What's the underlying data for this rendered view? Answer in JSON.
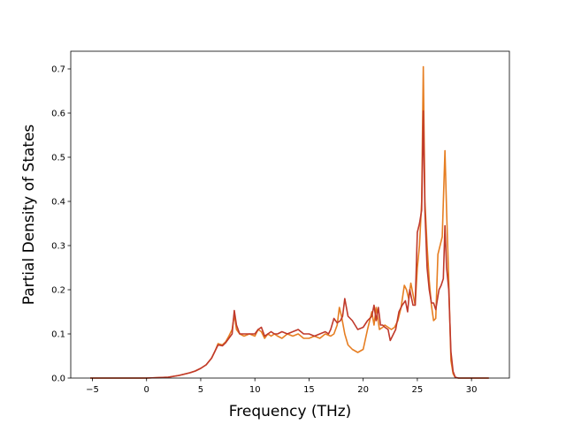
{
  "chart_data": {
    "type": "line",
    "title": "",
    "xlabel": "Frequency (THz)",
    "ylabel": "Partial Density of States",
    "xlim": [
      -7,
      33.5
    ],
    "ylim": [
      0,
      0.74
    ],
    "xticks": [
      -5,
      0,
      5,
      10,
      15,
      20,
      25,
      30
    ],
    "yticks": [
      0.0,
      0.1,
      0.2,
      0.3,
      0.4,
      0.5,
      0.6,
      0.7
    ],
    "xtick_labels": [
      "−5",
      "0",
      "5",
      "10",
      "15",
      "20",
      "25",
      "30"
    ],
    "ytick_labels": [
      "0.0",
      "0.1",
      "0.2",
      "0.3",
      "0.4",
      "0.5",
      "0.6",
      "0.7"
    ],
    "grid": false,
    "legend": "none",
    "series": [
      {
        "color": "#e67e22",
        "x": [
          -5.2,
          0,
          2,
          3,
          4,
          4.5,
          5,
          5.5,
          6,
          6.3,
          6.6,
          7,
          7.3,
          7.6,
          7.9,
          8.1,
          8.3,
          8.6,
          9,
          9.5,
          10,
          10.3,
          10.6,
          10.9,
          11.2,
          11.5,
          11.8,
          12.1,
          12.5,
          13,
          13.5,
          14,
          14.5,
          15,
          15.5,
          16,
          16.5,
          17,
          17.3,
          17.6,
          17.8,
          18,
          18.3,
          18.6,
          19,
          19.5,
          20,
          20.4,
          20.8,
          21,
          21.2,
          21.5,
          21.8,
          22,
          22.3,
          22.6,
          22.9,
          23.2,
          23.5,
          23.8,
          24,
          24.2,
          24.4,
          24.6,
          24.8,
          25,
          25.2,
          25.4,
          25.55,
          25.7,
          25.9,
          26.1,
          26.3,
          26.5,
          26.7,
          26.9,
          27.1,
          27.3,
          27.55,
          27.7,
          27.9,
          28.1,
          28.3,
          28.5,
          28.8,
          29.5,
          31.6
        ],
        "y": [
          0,
          0,
          0.002,
          0.006,
          0.012,
          0.016,
          0.022,
          0.03,
          0.045,
          0.06,
          0.078,
          0.075,
          0.082,
          0.095,
          0.11,
          0.145,
          0.11,
          0.1,
          0.095,
          0.1,
          0.095,
          0.11,
          0.105,
          0.09,
          0.1,
          0.095,
          0.1,
          0.095,
          0.09,
          0.1,
          0.095,
          0.1,
          0.09,
          0.09,
          0.095,
          0.09,
          0.1,
          0.095,
          0.1,
          0.12,
          0.16,
          0.14,
          0.1,
          0.075,
          0.065,
          0.058,
          0.065,
          0.11,
          0.15,
          0.12,
          0.16,
          0.11,
          0.115,
          0.12,
          0.115,
          0.11,
          0.115,
          0.13,
          0.16,
          0.21,
          0.2,
          0.18,
          0.215,
          0.19,
          0.165,
          0.25,
          0.3,
          0.4,
          0.705,
          0.4,
          0.3,
          0.22,
          0.165,
          0.13,
          0.135,
          0.28,
          0.3,
          0.32,
          0.515,
          0.38,
          0.22,
          0.04,
          0.01,
          0.001,
          0,
          0,
          0
        ]
      },
      {
        "color": "#c0392b",
        "x": [
          -5.2,
          0,
          2,
          3,
          4,
          4.5,
          5,
          5.5,
          6,
          6.3,
          6.6,
          7,
          7.3,
          7.6,
          7.9,
          8.1,
          8.3,
          8.6,
          9,
          9.5,
          10,
          10.3,
          10.6,
          10.9,
          11.2,
          11.5,
          11.8,
          12.1,
          12.5,
          13,
          13.5,
          14,
          14.5,
          15,
          15.5,
          16,
          16.5,
          16.8,
          17,
          17.3,
          17.6,
          17.9,
          18.1,
          18.3,
          18.6,
          19,
          19.5,
          20,
          20.4,
          20.8,
          21,
          21.2,
          21.4,
          21.6,
          21.8,
          22,
          22.3,
          22.5,
          22.7,
          23,
          23.3,
          23.6,
          23.9,
          24.1,
          24.3,
          24.6,
          24.8,
          25,
          25.2,
          25.4,
          25.55,
          25.7,
          25.9,
          26.1,
          26.3,
          26.5,
          26.7,
          27,
          27.2,
          27.4,
          27.55,
          27.7,
          27.9,
          28.1,
          28.3,
          28.5,
          28.8,
          29.5,
          31.6
        ],
        "y": [
          0,
          0,
          0.002,
          0.006,
          0.012,
          0.016,
          0.022,
          0.03,
          0.045,
          0.06,
          0.075,
          0.073,
          0.08,
          0.09,
          0.1,
          0.153,
          0.12,
          0.1,
          0.1,
          0.1,
          0.1,
          0.11,
          0.115,
          0.095,
          0.1,
          0.105,
          0.1,
          0.1,
          0.105,
          0.1,
          0.105,
          0.11,
          0.1,
          0.1,
          0.095,
          0.1,
          0.105,
          0.1,
          0.11,
          0.135,
          0.125,
          0.13,
          0.14,
          0.18,
          0.14,
          0.13,
          0.11,
          0.115,
          0.13,
          0.14,
          0.165,
          0.13,
          0.16,
          0.12,
          0.12,
          0.115,
          0.11,
          0.085,
          0.095,
          0.11,
          0.15,
          0.165,
          0.175,
          0.15,
          0.2,
          0.165,
          0.165,
          0.33,
          0.35,
          0.38,
          0.605,
          0.38,
          0.25,
          0.2,
          0.17,
          0.17,
          0.155,
          0.2,
          0.21,
          0.225,
          0.345,
          0.25,
          0.2,
          0.06,
          0.015,
          0.002,
          0,
          0,
          0
        ]
      }
    ]
  }
}
